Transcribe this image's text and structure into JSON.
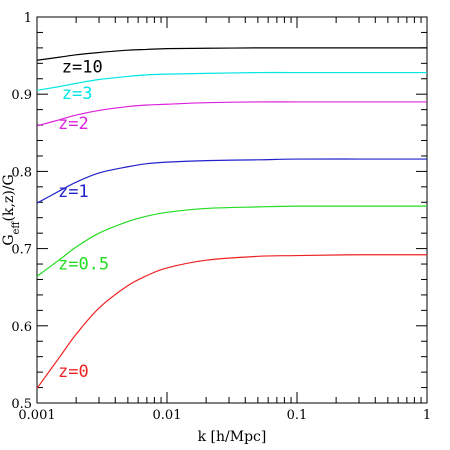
{
  "chart_data": {
    "type": "line",
    "xlabel": "k [h/Mpc]",
    "ylabel": "G_eff(k,z)/G",
    "ylabel_parts": {
      "base": "G",
      "sub": "eff",
      "rest": "(k,z)/G"
    },
    "xscale": "log",
    "xlim": [
      0.001,
      1
    ],
    "ylim": [
      0.5,
      1
    ],
    "x_ticks": [
      {
        "value": 0.001,
        "label": "0.001"
      },
      {
        "value": 0.01,
        "label": "0.01"
      },
      {
        "value": 0.1,
        "label": "0.1"
      },
      {
        "value": 1,
        "label": "1"
      }
    ],
    "y_ticks": [
      {
        "value": 0.5,
        "label": "0.5"
      },
      {
        "value": 0.6,
        "label": "0.6"
      },
      {
        "value": 0.7,
        "label": "0.7"
      },
      {
        "value": 0.8,
        "label": "0.8"
      },
      {
        "value": 0.9,
        "label": "0.9"
      },
      {
        "value": 1,
        "label": "1"
      }
    ],
    "grid": false,
    "series": [
      {
        "name": "z=10",
        "color": "#000000",
        "points": [
          [
            0.001,
            0.944
          ],
          [
            0.0015,
            0.948
          ],
          [
            0.002,
            0.951
          ],
          [
            0.003,
            0.954
          ],
          [
            0.005,
            0.957
          ],
          [
            0.007,
            0.958
          ],
          [
            0.01,
            0.959
          ],
          [
            0.02,
            0.9595
          ],
          [
            0.05,
            0.96
          ],
          [
            0.1,
            0.96
          ],
          [
            0.3,
            0.96
          ],
          [
            1,
            0.96
          ]
        ],
        "label_pos": {
          "x": 0.00155,
          "y": 0.928
        }
      },
      {
        "name": "z=3",
        "color": "#00e5e5",
        "points": [
          [
            0.001,
            0.905
          ],
          [
            0.0015,
            0.91
          ],
          [
            0.002,
            0.914
          ],
          [
            0.003,
            0.919
          ],
          [
            0.005,
            0.923
          ],
          [
            0.007,
            0.925
          ],
          [
            0.01,
            0.926
          ],
          [
            0.02,
            0.927
          ],
          [
            0.05,
            0.928
          ],
          [
            0.1,
            0.928
          ],
          [
            0.3,
            0.928
          ],
          [
            1,
            0.928
          ]
        ],
        "label_pos": {
          "x": 0.00155,
          "y": 0.894
        }
      },
      {
        "name": "z=2",
        "color": "#dd22dd",
        "points": [
          [
            0.001,
            0.859
          ],
          [
            0.0015,
            0.867
          ],
          [
            0.002,
            0.873
          ],
          [
            0.003,
            0.879
          ],
          [
            0.005,
            0.884
          ],
          [
            0.007,
            0.886
          ],
          [
            0.01,
            0.887
          ],
          [
            0.02,
            0.889
          ],
          [
            0.05,
            0.89
          ],
          [
            0.1,
            0.89
          ],
          [
            0.3,
            0.89
          ],
          [
            1,
            0.89
          ]
        ],
        "label_pos": {
          "x": 0.00145,
          "y": 0.855
        }
      },
      {
        "name": "z=1",
        "color": "#2222cc",
        "points": [
          [
            0.001,
            0.759
          ],
          [
            0.0015,
            0.775
          ],
          [
            0.002,
            0.786
          ],
          [
            0.003,
            0.798
          ],
          [
            0.005,
            0.806
          ],
          [
            0.007,
            0.81
          ],
          [
            0.01,
            0.812
          ],
          [
            0.02,
            0.814
          ],
          [
            0.05,
            0.815
          ],
          [
            0.1,
            0.816
          ],
          [
            0.3,
            0.816
          ],
          [
            1,
            0.816
          ]
        ],
        "label_pos": {
          "x": 0.00145,
          "y": 0.767
        }
      },
      {
        "name": "z=0.5",
        "color": "#22dd22",
        "points": [
          [
            0.001,
            0.664
          ],
          [
            0.0015,
            0.686
          ],
          [
            0.002,
            0.702
          ],
          [
            0.003,
            0.72
          ],
          [
            0.005,
            0.735
          ],
          [
            0.007,
            0.742
          ],
          [
            0.01,
            0.747
          ],
          [
            0.02,
            0.752
          ],
          [
            0.05,
            0.754
          ],
          [
            0.1,
            0.755
          ],
          [
            0.3,
            0.755
          ],
          [
            1,
            0.755
          ]
        ],
        "label_pos": {
          "x": 0.00145,
          "y": 0.673
        }
      },
      {
        "name": "z=0",
        "color": "#ee2222",
        "points": [
          [
            0.001,
            0.519
          ],
          [
            0.0015,
            0.56
          ],
          [
            0.002,
            0.589
          ],
          [
            0.003,
            0.623
          ],
          [
            0.005,
            0.652
          ],
          [
            0.007,
            0.665
          ],
          [
            0.01,
            0.675
          ],
          [
            0.02,
            0.685
          ],
          [
            0.05,
            0.69
          ],
          [
            0.1,
            0.691
          ],
          [
            0.3,
            0.692
          ],
          [
            1,
            0.692
          ]
        ],
        "label_pos": {
          "x": 0.00145,
          "y": 0.534
        }
      }
    ]
  }
}
